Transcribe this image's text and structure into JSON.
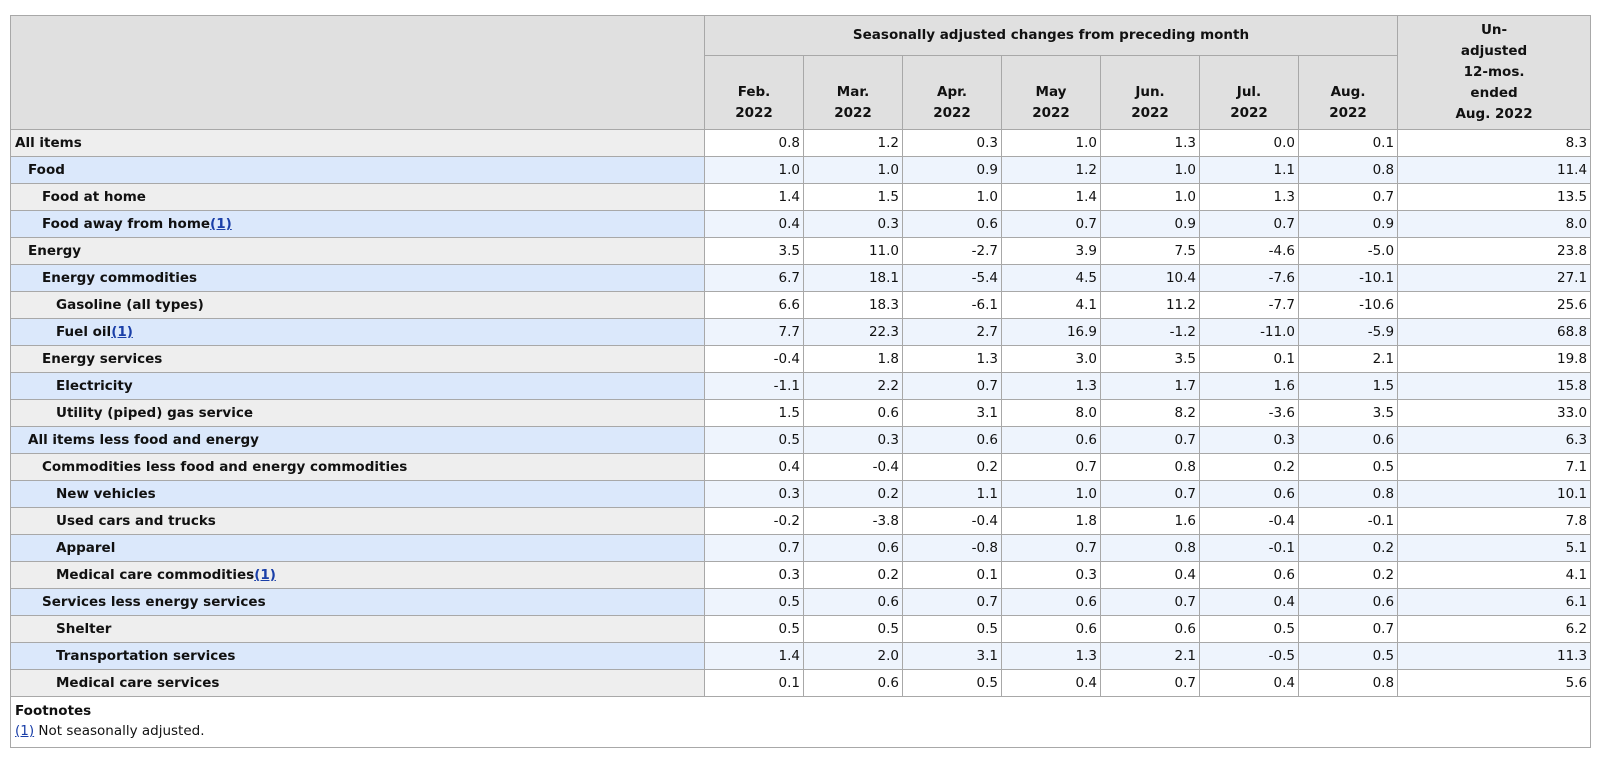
{
  "header": {
    "group_label": "Seasonally adjusted changes from preceding month",
    "months": [
      {
        "line1": "Feb.",
        "line2": "2022"
      },
      {
        "line1": "Mar.",
        "line2": "2022"
      },
      {
        "line1": "Apr.",
        "line2": "2022"
      },
      {
        "line1": "May",
        "line2": "2022"
      },
      {
        "line1": "Jun.",
        "line2": "2022"
      },
      {
        "line1": "Jul.",
        "line2": "2022"
      },
      {
        "line1": "Aug.",
        "line2": "2022"
      }
    ],
    "unadjusted": {
      "line1": "Un-",
      "line2": "adjusted",
      "line3": "12-mos.",
      "line4": "ended",
      "line5": "Aug. 2022"
    }
  },
  "rows": [
    {
      "label": "All items",
      "indent": 0,
      "footnote": "",
      "values": [
        "0.8",
        "1.2",
        "0.3",
        "1.0",
        "1.3",
        "0.0",
        "0.1",
        "8.3"
      ]
    },
    {
      "label": "Food",
      "indent": 1,
      "footnote": "",
      "values": [
        "1.0",
        "1.0",
        "0.9",
        "1.2",
        "1.0",
        "1.1",
        "0.8",
        "11.4"
      ]
    },
    {
      "label": "Food at home",
      "indent": 2,
      "footnote": "",
      "values": [
        "1.4",
        "1.5",
        "1.0",
        "1.4",
        "1.0",
        "1.3",
        "0.7",
        "13.5"
      ]
    },
    {
      "label": "Food away from home",
      "indent": 2,
      "footnote": "(1)",
      "values": [
        "0.4",
        "0.3",
        "0.6",
        "0.7",
        "0.9",
        "0.7",
        "0.9",
        "8.0"
      ]
    },
    {
      "label": "Energy",
      "indent": 1,
      "footnote": "",
      "values": [
        "3.5",
        "11.0",
        "-2.7",
        "3.9",
        "7.5",
        "-4.6",
        "-5.0",
        "23.8"
      ]
    },
    {
      "label": "Energy commodities",
      "indent": 2,
      "footnote": "",
      "values": [
        "6.7",
        "18.1",
        "-5.4",
        "4.5",
        "10.4",
        "-7.6",
        "-10.1",
        "27.1"
      ]
    },
    {
      "label": "Gasoline (all types)",
      "indent": 3,
      "footnote": "",
      "values": [
        "6.6",
        "18.3",
        "-6.1",
        "4.1",
        "11.2",
        "-7.7",
        "-10.6",
        "25.6"
      ]
    },
    {
      "label": "Fuel oil",
      "indent": 3,
      "footnote": "(1)",
      "values": [
        "7.7",
        "22.3",
        "2.7",
        "16.9",
        "-1.2",
        "-11.0",
        "-5.9",
        "68.8"
      ]
    },
    {
      "label": "Energy services",
      "indent": 2,
      "footnote": "",
      "values": [
        "-0.4",
        "1.8",
        "1.3",
        "3.0",
        "3.5",
        "0.1",
        "2.1",
        "19.8"
      ]
    },
    {
      "label": "Electricity",
      "indent": 3,
      "footnote": "",
      "values": [
        "-1.1",
        "2.2",
        "0.7",
        "1.3",
        "1.7",
        "1.6",
        "1.5",
        "15.8"
      ]
    },
    {
      "label": "Utility (piped) gas service",
      "indent": 3,
      "footnote": "",
      "values": [
        "1.5",
        "0.6",
        "3.1",
        "8.0",
        "8.2",
        "-3.6",
        "3.5",
        "33.0"
      ]
    },
    {
      "label": "All items less food and energy",
      "indent": 1,
      "footnote": "",
      "values": [
        "0.5",
        "0.3",
        "0.6",
        "0.6",
        "0.7",
        "0.3",
        "0.6",
        "6.3"
      ]
    },
    {
      "label": "Commodities less food and energy commodities",
      "indent": 2,
      "footnote": "",
      "values": [
        "0.4",
        "-0.4",
        "0.2",
        "0.7",
        "0.8",
        "0.2",
        "0.5",
        "7.1"
      ]
    },
    {
      "label": "New vehicles",
      "indent": 3,
      "footnote": "",
      "values": [
        "0.3",
        "0.2",
        "1.1",
        "1.0",
        "0.7",
        "0.6",
        "0.8",
        "10.1"
      ]
    },
    {
      "label": "Used cars and trucks",
      "indent": 3,
      "footnote": "",
      "values": [
        "-0.2",
        "-3.8",
        "-0.4",
        "1.8",
        "1.6",
        "-0.4",
        "-0.1",
        "7.8"
      ]
    },
    {
      "label": "Apparel",
      "indent": 3,
      "footnote": "",
      "values": [
        "0.7",
        "0.6",
        "-0.8",
        "0.7",
        "0.8",
        "-0.1",
        "0.2",
        "5.1"
      ]
    },
    {
      "label": "Medical care commodities",
      "indent": 3,
      "footnote": "(1)",
      "values": [
        "0.3",
        "0.2",
        "0.1",
        "0.3",
        "0.4",
        "0.6",
        "0.2",
        "4.1"
      ]
    },
    {
      "label": "Services less energy services",
      "indent": 2,
      "footnote": "",
      "values": [
        "0.5",
        "0.6",
        "0.7",
        "0.6",
        "0.7",
        "0.4",
        "0.6",
        "6.1"
      ]
    },
    {
      "label": "Shelter",
      "indent": 3,
      "footnote": "",
      "values": [
        "0.5",
        "0.5",
        "0.5",
        "0.6",
        "0.6",
        "0.5",
        "0.7",
        "6.2"
      ]
    },
    {
      "label": "Transportation services",
      "indent": 3,
      "footnote": "",
      "values": [
        "1.4",
        "2.0",
        "3.1",
        "1.3",
        "2.1",
        "-0.5",
        "0.5",
        "11.3"
      ]
    },
    {
      "label": "Medical care services",
      "indent": 3,
      "footnote": "",
      "values": [
        "0.1",
        "0.6",
        "0.5",
        "0.4",
        "0.7",
        "0.4",
        "0.8",
        "5.6"
      ]
    }
  ],
  "footnotes": {
    "title": "Footnotes",
    "items": [
      {
        "marker": "(1)",
        "text": " Not seasonally adjusted."
      }
    ]
  }
}
